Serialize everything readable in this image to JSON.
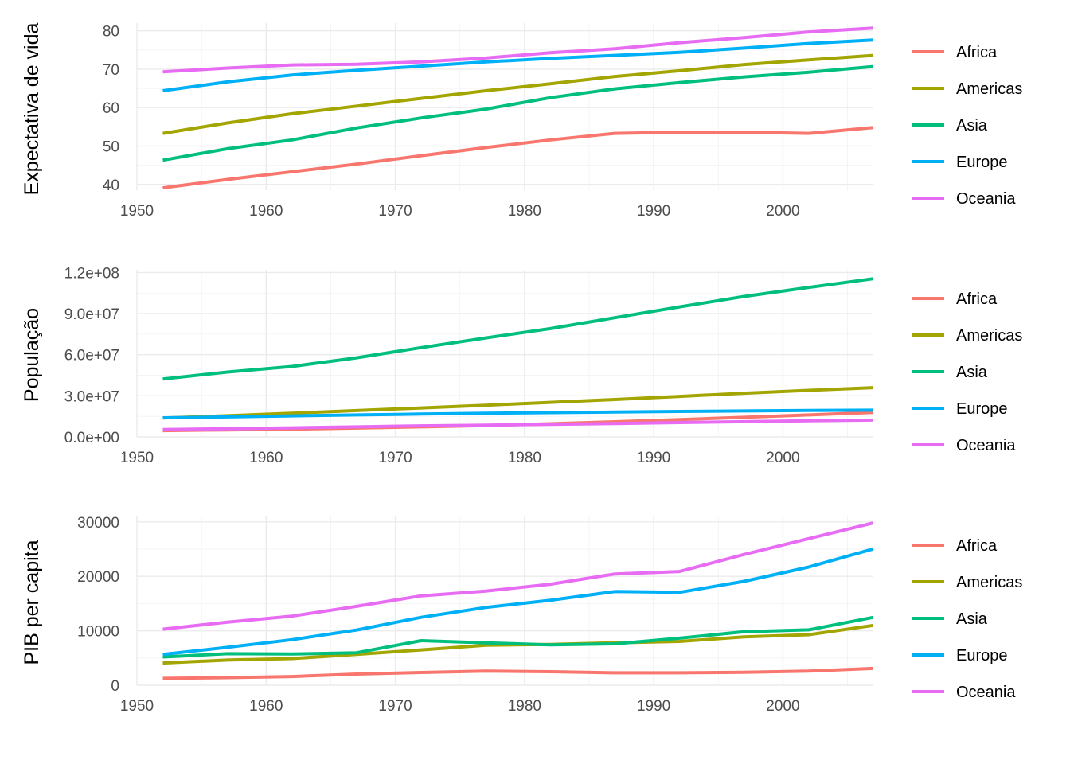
{
  "figure": {
    "type": "multi-panel-line",
    "colors": {
      "Africa": "#F8766D",
      "Americas": "#A3A500",
      "Asia": "#00BF7D",
      "Europe": "#00B0F6",
      "Oceania": "#E76BF3"
    }
  },
  "chart_data": [
    {
      "type": "line",
      "ylabel": "Expectativa de vida",
      "xlabel": "",
      "xlim": [
        1950,
        2007
      ],
      "ylim": [
        38.5,
        82
      ],
      "x_ticks": [
        1950,
        1960,
        1970,
        1980,
        1990,
        2000
      ],
      "x_tick_labels": [
        "1950",
        "1960",
        "1970",
        "1980",
        "1990",
        "2000"
      ],
      "y_ticks": [
        40,
        50,
        60,
        70,
        80
      ],
      "y_tick_labels": [
        "40",
        "50",
        "60",
        "70",
        "80"
      ],
      "legend": [
        "Africa",
        "Americas",
        "Asia",
        "Europe",
        "Oceania"
      ],
      "x": [
        1952,
        1957,
        1962,
        1967,
        1972,
        1977,
        1982,
        1987,
        1992,
        1997,
        2002,
        2007
      ],
      "series": [
        {
          "name": "Africa",
          "values": [
            39.1,
            41.3,
            43.3,
            45.3,
            47.5,
            49.6,
            51.6,
            53.3,
            53.6,
            53.6,
            53.3,
            54.8
          ]
        },
        {
          "name": "Americas",
          "values": [
            53.3,
            56.0,
            58.4,
            60.4,
            62.4,
            64.4,
            66.2,
            68.1,
            69.6,
            71.2,
            72.4,
            73.6
          ]
        },
        {
          "name": "Asia",
          "values": [
            46.3,
            49.3,
            51.6,
            54.7,
            57.3,
            59.6,
            62.6,
            64.9,
            66.5,
            68.0,
            69.2,
            70.7
          ]
        },
        {
          "name": "Europe",
          "values": [
            64.4,
            66.7,
            68.5,
            69.7,
            70.8,
            71.9,
            72.8,
            73.6,
            74.4,
            75.5,
            76.7,
            77.6
          ]
        },
        {
          "name": "Oceania",
          "values": [
            69.3,
            70.3,
            71.1,
            71.3,
            71.9,
            72.9,
            74.3,
            75.3,
            76.9,
            78.2,
            79.7,
            80.7
          ]
        }
      ]
    },
    {
      "type": "line",
      "ylabel": "População",
      "xlabel": "",
      "xlim": [
        1950,
        2007
      ],
      "ylim": [
        0,
        122000000
      ],
      "x_ticks": [
        1950,
        1960,
        1970,
        1980,
        1990,
        2000
      ],
      "x_tick_labels": [
        "1950",
        "1960",
        "1970",
        "1980",
        "1990",
        "2000"
      ],
      "y_ticks": [
        0,
        30000000,
        60000000,
        90000000,
        120000000
      ],
      "y_tick_labels": [
        "0.0e+00",
        "3.0e+07",
        "6.0e+07",
        "9.0e+07",
        "1.2e+08"
      ],
      "legend": [
        "Africa",
        "Americas",
        "Asia",
        "Europe",
        "Oceania"
      ],
      "x": [
        1952,
        1957,
        1962,
        1967,
        1972,
        1977,
        1982,
        1987,
        1992,
        1997,
        2002,
        2007
      ],
      "series": [
        {
          "name": "Africa",
          "values": [
            4570010,
            5093033,
            5702247,
            6447875,
            7305376,
            8328097,
            9602857,
            11054502,
            12674645,
            14304480,
            16033152,
            17875763
          ]
        },
        {
          "name": "Americas",
          "values": [
            13806098,
            15478157,
            17330810,
            19229865,
            21175368,
            23122708,
            25211637,
            27310159,
            29570964,
            31876016,
            33990910,
            35954847
          ]
        },
        {
          "name": "Asia",
          "values": [
            42283556,
            47356988,
            51404763,
            57747361,
            65180977,
            72257987,
            79095018,
            87006690,
            94948248,
            102523803,
            109145521,
            115513752
          ]
        },
        {
          "name": "Europe",
          "values": [
            13937362,
            14596345,
            15345172,
            16039299,
            16687835,
            17238818,
            17708897,
            18103139,
            18604760,
            18964805,
            19274129,
            19536618
          ]
        },
        {
          "name": "Oceania",
          "values": [
            5343003,
            5970988,
            6641759,
            7300207,
            8053050,
            8619500,
            9197425,
            9787208,
            10459826,
            11120715,
            11727414,
            12274974
          ]
        }
      ]
    },
    {
      "type": "line",
      "ylabel": "PIB per capita",
      "xlabel": "",
      "xlim": [
        1950,
        2007
      ],
      "ylim": [
        0,
        31000
      ],
      "x_ticks": [
        1950,
        1960,
        1970,
        1980,
        1990,
        2000
      ],
      "x_tick_labels": [
        "1950",
        "1960",
        "1970",
        "1980",
        "1990",
        "2000"
      ],
      "y_ticks": [
        0,
        10000,
        20000,
        30000
      ],
      "y_tick_labels": [
        "0",
        "10000",
        "20000",
        "30000"
      ],
      "legend": [
        "Africa",
        "Americas",
        "Asia",
        "Europe",
        "Oceania"
      ],
      "x": [
        1952,
        1957,
        1962,
        1967,
        1972,
        1977,
        1982,
        1987,
        1992,
        1997,
        2002,
        2007
      ],
      "series": [
        {
          "name": "Africa",
          "values": [
            1253,
            1385,
            1598,
            2050,
            2340,
            2586,
            2482,
            2283,
            2282,
            2379,
            2599,
            3089
          ]
        },
        {
          "name": "Americas",
          "values": [
            4079,
            4616,
            4901,
            5668,
            6491,
            7352,
            7507,
            7793,
            8045,
            8890,
            9288,
            11003
          ]
        },
        {
          "name": "Asia",
          "values": [
            5195,
            5788,
            5729,
            5971,
            8187,
            7791,
            7434,
            7608,
            8639,
            9834,
            10174,
            12473
          ]
        },
        {
          "name": "Europe",
          "values": [
            5661,
            6963,
            8365,
            10144,
            12480,
            14284,
            15618,
            17214,
            17062,
            19077,
            21712,
            25054
          ]
        },
        {
          "name": "Oceania",
          "values": [
            10298,
            11599,
            12696,
            14495,
            16417,
            17284,
            18555,
            20448,
            20894,
            24024,
            26939,
            29810
          ]
        }
      ]
    }
  ]
}
